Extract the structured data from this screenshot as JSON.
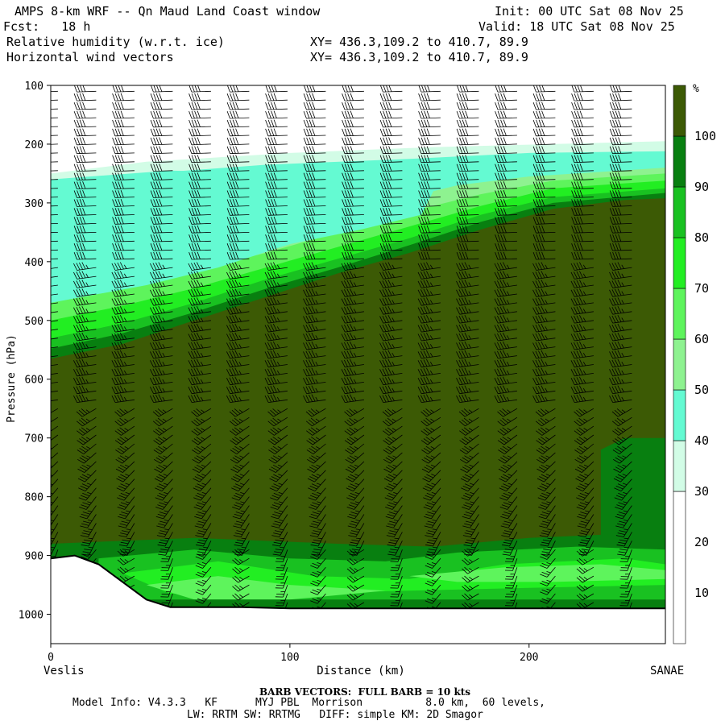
{
  "header": {
    "title": "AMPS 8-km WRF -- Qn Maud Land Coast window",
    "fcst": "Fcst:   18 h",
    "init": "Init: 00 UTC Sat 08 Nov 25",
    "valid": "Valid: 18 UTC Sat 08 Nov 25",
    "field1": "Relative humidity (w.r.t. ice)",
    "field2": "Horizontal wind vectors",
    "xy1": "XY= 436.3,109.2 to 410.7, 89.9",
    "xy2": "XY= 436.3,109.2 to 410.7, 89.9"
  },
  "footer": {
    "barb_note": "BARB VECTORS:  FULL BARB = 10 kts",
    "model_line1": "Model Info: V4.3.3   KF      MYJ PBL  Morrison          8.0 km,  60 levels,",
    "model_line2": "LW: RRTM SW: RRTMG   DIFF: simple KM: 2D Smagor"
  },
  "chart_data": {
    "type": "heatmap",
    "title": "Relative humidity (w.r.t. ice)",
    "xlabel": "Distance (km)",
    "ylabel": "Pressure (hPa)",
    "x_left_label": "Veslis",
    "x_right_label": "SANAE",
    "xlim": [
      0,
      257
    ],
    "ylim": [
      100,
      1050
    ],
    "y_scale": "linear, inverted",
    "x_ticks": [
      0,
      100,
      200
    ],
    "y_ticks": [
      100,
      200,
      300,
      400,
      500,
      600,
      700,
      800,
      900,
      1000
    ],
    "colorbar": {
      "unit": "%",
      "ticks": [
        10,
        20,
        30,
        40,
        50,
        60,
        70,
        80,
        90,
        100
      ],
      "bins": [
        {
          "min": 0,
          "max": 30,
          "color": "#ffffff"
        },
        {
          "min": 30,
          "max": 40,
          "color": "#d2fce6"
        },
        {
          "min": 40,
          "max": 50,
          "color": "#64fad2"
        },
        {
          "min": 50,
          "max": 60,
          "color": "#8ef290"
        },
        {
          "min": 60,
          "max": 70,
          "color": "#5ef45c"
        },
        {
          "min": 70,
          "max": 80,
          "color": "#22ee22"
        },
        {
          "min": 80,
          "max": 90,
          "color": "#19c121"
        },
        {
          "min": 90,
          "max": 100,
          "color": "#087f10"
        },
        {
          "min": 100,
          "max": 110,
          "color": "#3c5a05"
        }
      ]
    },
    "regions": [
      {
        "name": "upper-white",
        "rh_class": "<30",
        "color": "#ffffff",
        "pressure_top": 100,
        "pressure_bottom": 195
      },
      {
        "name": "dry-layer",
        "rh_class": "40-50",
        "color": "#64fad2",
        "note": "upper-left dry zone 250-550 hPa"
      },
      {
        "name": "moist-core",
        "rh_class": ">100",
        "color": "#3c5a05",
        "note": "saturated layer below sloping boundary from 560 hPa at 0 km to 290 hPa at 257 km"
      },
      {
        "name": "boundary-layer-band",
        "rh_class": "60-90",
        "color": "#22ee22",
        "note": "near-surface band 880-990 hPa"
      }
    ],
    "terrain": {
      "label": "surface",
      "points": [
        {
          "x": 0,
          "p": 905
        },
        {
          "x": 10,
          "p": 900
        },
        {
          "x": 20,
          "p": 915
        },
        {
          "x": 30,
          "p": 945
        },
        {
          "x": 40,
          "p": 975
        },
        {
          "x": 50,
          "p": 988
        },
        {
          "x": 80,
          "p": 988
        },
        {
          "x": 100,
          "p": 990
        },
        {
          "x": 150,
          "p": 990
        },
        {
          "x": 200,
          "p": 990
        },
        {
          "x": 257,
          "p": 990
        }
      ]
    },
    "wind_barbs": {
      "unit": "kts",
      "full_barb": 10,
      "note": "strong westerlies aloft, weaker near surface"
    }
  }
}
